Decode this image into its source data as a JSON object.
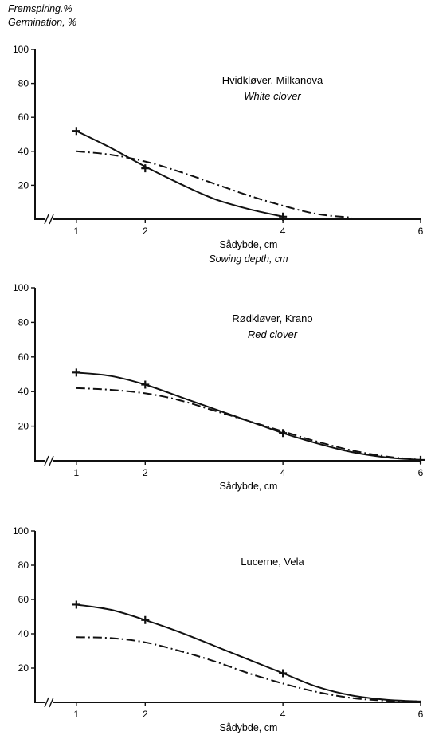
{
  "y_header": {
    "line1": "Fremspiring.%",
    "line2": "Germination, %"
  },
  "chart_data": [
    {
      "type": "line",
      "title": "Hvidkløver, Milkanova",
      "subtitle": "White clover",
      "xlabel": "Sådybde, cm",
      "xlabel2": "Sowing depth, cm",
      "xlim": [
        0.4,
        6
      ],
      "ylim": [
        0,
        100
      ],
      "x_ticks": [
        1,
        2,
        4,
        6
      ],
      "y_ticks": [
        20,
        40,
        60,
        80,
        100
      ],
      "axis_break": true,
      "series": [
        {
          "style": "solid",
          "points": [
            [
              1,
              52
            ],
            [
              1.5,
              42
            ],
            [
              2,
              31
            ],
            [
              2.5,
              21
            ],
            [
              3,
              12
            ],
            [
              3.5,
              6
            ],
            [
              4,
              1.5
            ]
          ],
          "markers": [
            [
              1,
              52
            ],
            [
              2,
              30
            ],
            [
              4,
              1.5
            ]
          ]
        },
        {
          "style": "dash-dot",
          "points": [
            [
              1,
              40
            ],
            [
              1.5,
              38
            ],
            [
              2,
              34
            ],
            [
              2.5,
              28
            ],
            [
              3,
              21
            ],
            [
              3.5,
              14
            ],
            [
              4,
              8
            ],
            [
              4.5,
              3
            ],
            [
              5,
              1
            ]
          ],
          "markers": []
        }
      ]
    },
    {
      "type": "line",
      "title": "Rødkløver, Krano",
      "subtitle": "Red clover",
      "xlabel": "Sådybde, cm",
      "xlabel2": "",
      "xlim": [
        0.4,
        6
      ],
      "ylim": [
        0,
        100
      ],
      "x_ticks": [
        1,
        2,
        4,
        6
      ],
      "y_ticks": [
        20,
        40,
        60,
        80,
        100
      ],
      "axis_break": true,
      "series": [
        {
          "style": "solid",
          "points": [
            [
              1,
              51
            ],
            [
              1.5,
              49
            ],
            [
              2,
              44
            ],
            [
              2.5,
              37
            ],
            [
              3,
              30
            ],
            [
              3.5,
              23
            ],
            [
              4,
              16
            ],
            [
              4.5,
              10
            ],
            [
              5,
              5
            ],
            [
              5.5,
              2
            ],
            [
              6,
              0.5
            ]
          ],
          "markers": [
            [
              1,
              51
            ],
            [
              2,
              44
            ],
            [
              4,
              16
            ],
            [
              6,
              0.5
            ]
          ]
        },
        {
          "style": "dash-dot",
          "points": [
            [
              1,
              42
            ],
            [
              1.5,
              41
            ],
            [
              2,
              39
            ],
            [
              2.5,
              35
            ],
            [
              3,
              29
            ],
            [
              3.5,
              23
            ],
            [
              4,
              17
            ],
            [
              4.5,
              11
            ],
            [
              5,
              6
            ],
            [
              5.5,
              2.5
            ],
            [
              6,
              0.5
            ]
          ],
          "markers": []
        }
      ]
    },
    {
      "type": "line",
      "title": "Lucerne, Vela",
      "subtitle": "",
      "xlabel": "Sådybde, cm",
      "xlabel2": "",
      "xlim": [
        0.4,
        6
      ],
      "ylim": [
        0,
        100
      ],
      "x_ticks": [
        1,
        2,
        4,
        6
      ],
      "y_ticks": [
        20,
        40,
        60,
        80,
        100
      ],
      "axis_break": true,
      "series": [
        {
          "style": "solid",
          "points": [
            [
              1,
              57
            ],
            [
              1.5,
              54
            ],
            [
              2,
              48
            ],
            [
              2.5,
              41
            ],
            [
              3,
              33
            ],
            [
              3.5,
              25
            ],
            [
              4,
              17
            ],
            [
              4.5,
              9
            ],
            [
              5,
              4
            ],
            [
              5.5,
              1.5
            ],
            [
              6,
              0.5
            ]
          ],
          "markers": [
            [
              1,
              57
            ],
            [
              2,
              48
            ],
            [
              4,
              17
            ]
          ]
        },
        {
          "style": "dash-dot",
          "points": [
            [
              1,
              38
            ],
            [
              1.5,
              37.5
            ],
            [
              2,
              35
            ],
            [
              2.5,
              30
            ],
            [
              3,
              24
            ],
            [
              3.5,
              17
            ],
            [
              4,
              11
            ],
            [
              4.5,
              6
            ],
            [
              5,
              2.5
            ],
            [
              5.5,
              1
            ],
            [
              6,
              0.5
            ]
          ],
          "markers": []
        }
      ]
    }
  ]
}
